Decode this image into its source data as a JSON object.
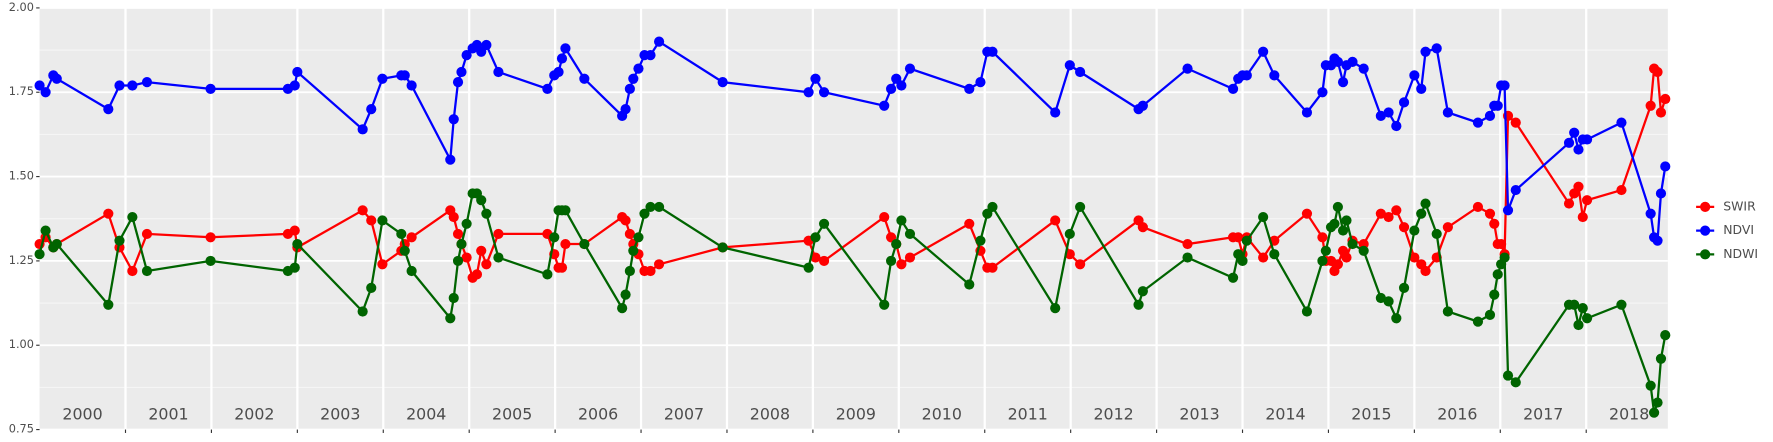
{
  "chart_data": {
    "type": "line",
    "x": [
      2000.0,
      2000.07,
      2000.16,
      2000.2,
      2000.8,
      2000.93,
      2001.08,
      2001.25,
      2001.99,
      2002.89,
      2002.97,
      2003.0,
      2003.76,
      2003.86,
      2003.99,
      2004.21,
      2004.25,
      2004.33,
      2004.78,
      2004.82,
      2004.87,
      2004.91,
      2004.97,
      2005.04,
      2005.09,
      2005.14,
      2005.2,
      2005.34,
      2005.91,
      2005.99,
      2006.04,
      2006.08,
      2006.12,
      2006.34,
      2006.78,
      2006.82,
      2006.87,
      2006.91,
      2006.97,
      2007.04,
      2007.11,
      2007.21,
      2007.95,
      2008.95,
      2009.03,
      2009.13,
      2009.83,
      2009.91,
      2009.97,
      2010.03,
      2010.13,
      2010.82,
      2010.95,
      2011.03,
      2011.09,
      2011.82,
      2011.99,
      2012.11,
      2012.79,
      2012.84,
      2013.36,
      2013.89,
      2013.95,
      2014.0,
      2014.05,
      2014.24,
      2014.37,
      2014.75,
      2014.93,
      2014.97,
      2015.03,
      2015.07,
      2015.11,
      2015.17,
      2015.21,
      2015.28,
      2015.41,
      2015.61,
      2015.7,
      2015.79,
      2015.88,
      2016.0,
      2016.08,
      2016.13,
      2016.26,
      2016.39,
      2016.74,
      2016.88,
      2016.93,
      2016.97,
      2017.01,
      2017.05,
      2017.09,
      2017.18,
      2017.8,
      2017.86,
      2017.91,
      2017.96,
      2018.01,
      2018.41,
      2018.75,
      2018.79,
      2018.83,
      2018.87,
      2018.92
    ],
    "series": [
      {
        "name": "SWIR",
        "color": "#ff0000",
        "values": [
          1.3,
          1.32,
          1.29,
          1.3,
          1.39,
          1.29,
          1.22,
          1.33,
          1.32,
          1.33,
          1.34,
          1.29,
          1.4,
          1.37,
          1.24,
          1.28,
          1.3,
          1.32,
          1.4,
          1.38,
          1.33,
          1.3,
          1.26,
          1.2,
          1.21,
          1.28,
          1.24,
          1.33,
          1.33,
          1.27,
          1.23,
          1.23,
          1.3,
          1.3,
          1.38,
          1.37,
          1.33,
          1.3,
          1.27,
          1.22,
          1.22,
          1.24,
          1.29,
          1.31,
          1.26,
          1.25,
          1.38,
          1.32,
          1.3,
          1.24,
          1.26,
          1.36,
          1.28,
          1.23,
          1.23,
          1.37,
          1.27,
          1.24,
          1.37,
          1.35,
          1.3,
          1.32,
          1.32,
          1.27,
          1.32,
          1.26,
          1.31,
          1.39,
          1.32,
          1.25,
          1.25,
          1.22,
          1.24,
          1.28,
          1.26,
          1.31,
          1.3,
          1.39,
          1.38,
          1.4,
          1.35,
          1.26,
          1.24,
          1.22,
          1.26,
          1.35,
          1.41,
          1.39,
          1.36,
          1.3,
          1.3,
          1.27,
          1.68,
          1.66,
          1.42,
          1.45,
          1.47,
          1.38,
          1.43,
          1.46,
          1.71,
          1.82,
          1.81,
          1.69,
          1.73
        ]
      },
      {
        "name": "NDVI",
        "color": "#0000ff",
        "values": [
          1.77,
          1.75,
          1.8,
          1.79,
          1.7,
          1.77,
          1.77,
          1.78,
          1.76,
          1.76,
          1.77,
          1.81,
          1.64,
          1.7,
          1.79,
          1.8,
          1.8,
          1.77,
          1.55,
          1.67,
          1.78,
          1.81,
          1.86,
          1.88,
          1.89,
          1.87,
          1.89,
          1.81,
          1.76,
          1.8,
          1.81,
          1.85,
          1.88,
          1.79,
          1.68,
          1.7,
          1.76,
          1.79,
          1.82,
          1.86,
          1.86,
          1.9,
          1.78,
          1.75,
          1.79,
          1.75,
          1.71,
          1.76,
          1.79,
          1.77,
          1.82,
          1.76,
          1.78,
          1.87,
          1.87,
          1.69,
          1.83,
          1.81,
          1.7,
          1.71,
          1.82,
          1.76,
          1.79,
          1.8,
          1.8,
          1.87,
          1.8,
          1.69,
          1.75,
          1.83,
          1.83,
          1.85,
          1.84,
          1.78,
          1.83,
          1.84,
          1.82,
          1.68,
          1.69,
          1.65,
          1.72,
          1.8,
          1.76,
          1.87,
          1.88,
          1.69,
          1.66,
          1.68,
          1.71,
          1.71,
          1.77,
          1.77,
          1.4,
          1.46,
          1.6,
          1.63,
          1.58,
          1.61,
          1.61,
          1.66,
          1.39,
          1.32,
          1.31,
          1.45,
          1.53
        ]
      },
      {
        "name": "NDWI",
        "color": "#006400",
        "values": [
          1.27,
          1.34,
          1.29,
          1.3,
          1.12,
          1.31,
          1.38,
          1.22,
          1.25,
          1.22,
          1.23,
          1.3,
          1.1,
          1.17,
          1.37,
          1.33,
          1.28,
          1.22,
          1.08,
          1.14,
          1.25,
          1.3,
          1.36,
          1.45,
          1.45,
          1.43,
          1.39,
          1.26,
          1.21,
          1.32,
          1.4,
          1.4,
          1.4,
          1.3,
          1.11,
          1.15,
          1.22,
          1.28,
          1.32,
          1.39,
          1.41,
          1.41,
          1.29,
          1.23,
          1.32,
          1.36,
          1.12,
          1.25,
          1.3,
          1.37,
          1.33,
          1.18,
          1.31,
          1.39,
          1.41,
          1.11,
          1.33,
          1.41,
          1.12,
          1.16,
          1.26,
          1.2,
          1.27,
          1.25,
          1.31,
          1.38,
          1.27,
          1.1,
          1.25,
          1.28,
          1.35,
          1.36,
          1.41,
          1.34,
          1.37,
          1.3,
          1.28,
          1.14,
          1.13,
          1.08,
          1.17,
          1.34,
          1.39,
          1.42,
          1.33,
          1.1,
          1.07,
          1.09,
          1.15,
          1.21,
          1.24,
          1.26,
          0.91,
          0.89,
          1.12,
          1.12,
          1.06,
          1.11,
          1.08,
          1.12,
          0.88,
          0.8,
          0.83,
          0.96,
          1.03
        ]
      }
    ],
    "xlim": [
      2000,
      2018.95
    ],
    "xticks": [
      2001,
      2002,
      2003,
      2004,
      2005,
      2006,
      2007,
      2008,
      2009,
      2010,
      2011,
      2012,
      2013,
      2014,
      2015,
      2016,
      2017,
      2018
    ],
    "panel_labels": [
      "2000",
      "2001",
      "2002",
      "2003",
      "2004",
      "2005",
      "2006",
      "2007",
      "2008",
      "2009",
      "2010",
      "2011",
      "2012",
      "2013",
      "2014",
      "2015",
      "2016",
      "2017",
      "2018"
    ],
    "ylim": [
      0.75,
      2.0
    ],
    "yticks": [
      {
        "value": 0.75,
        "label": "0.75"
      },
      {
        "value": 1,
        "label": "1.00"
      },
      {
        "value": 1.25,
        "label": "1.25"
      },
      {
        "value": 1.5,
        "label": "1.50"
      },
      {
        "value": 1.75,
        "label": "1.75"
      },
      {
        "value": 2,
        "label": "2.00"
      }
    ],
    "grid": true
  }
}
